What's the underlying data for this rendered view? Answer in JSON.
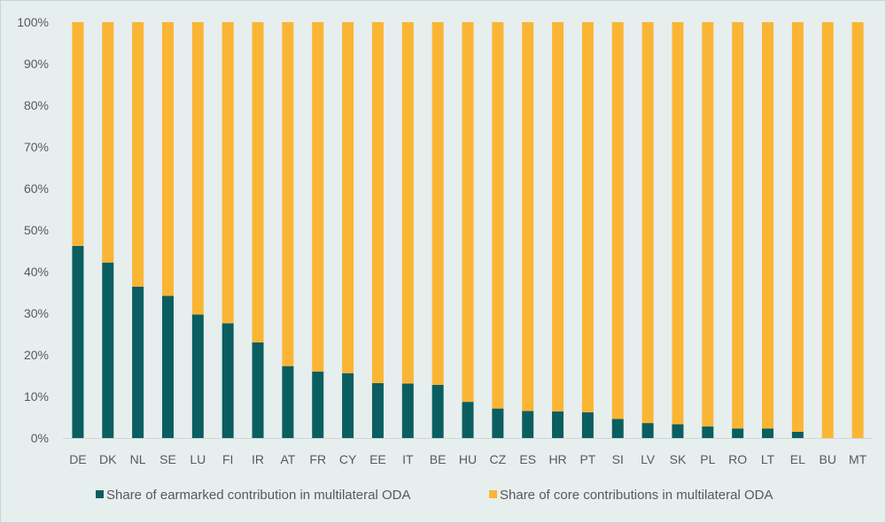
{
  "chart_data": {
    "type": "bar",
    "stacked": true,
    "categories": [
      "DE",
      "DK",
      "NL",
      "SE",
      "LU",
      "FI",
      "IR",
      "AT",
      "FR",
      "CY",
      "EE",
      "IT",
      "BE",
      "HU",
      "CZ",
      "ES",
      "HR",
      "PT",
      "SI",
      "LV",
      "SK",
      "PL",
      "RO",
      "LT",
      "EL",
      "BU",
      "MT"
    ],
    "series": [
      {
        "name": "Share of earmarked contribution in multilateral ODA",
        "color": "#0b5e60",
        "values": [
          46.2,
          42.2,
          36.4,
          34.2,
          29.7,
          27.6,
          23.0,
          17.3,
          16.0,
          15.6,
          13.2,
          13.1,
          12.8,
          8.7,
          7.1,
          6.5,
          6.4,
          6.2,
          4.6,
          3.6,
          3.3,
          2.8,
          2.3,
          2.3,
          1.5,
          0.0,
          0.0
        ]
      },
      {
        "name": "Share of core contributions in multilateral ODA",
        "color": "#fbb534",
        "values": [
          53.8,
          57.8,
          63.6,
          65.8,
          70.3,
          72.4,
          77.0,
          82.7,
          84.0,
          84.4,
          86.8,
          86.9,
          87.2,
          91.3,
          92.9,
          93.5,
          93.6,
          93.8,
          95.4,
          96.4,
          96.7,
          97.2,
          97.7,
          97.7,
          98.5,
          100.0,
          100.0
        ]
      }
    ],
    "y_tick_labels": [
      "0%",
      "10%",
      "20%",
      "30%",
      "40%",
      "50%",
      "60%",
      "70%",
      "80%",
      "90%",
      "100%"
    ],
    "ylim": [
      0,
      100
    ],
    "grid": false,
    "legend_position": "bottom",
    "title": "",
    "xlabel": "",
    "ylabel": ""
  }
}
